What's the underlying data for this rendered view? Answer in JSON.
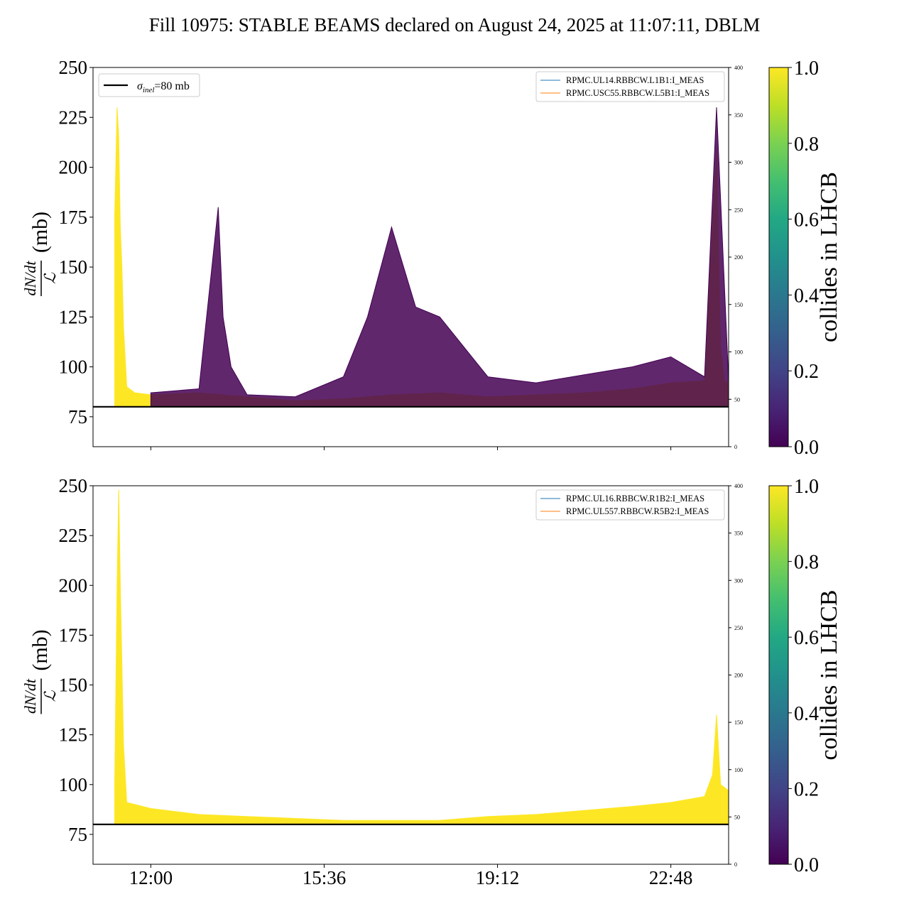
{
  "figure": {
    "title": "Fill 10975: STABLE BEAMS declared on August 24, 2025 at 11:07:11, DBLM"
  },
  "chart_data": [
    {
      "type": "line",
      "panel": "top",
      "ylabel": "dN/dt / ℒ (mb)",
      "ylabel_parts": {
        "numerator": "dN/dt",
        "denominator": "ℒ",
        "unit": "(mb)"
      },
      "ylim": [
        60,
        250
      ],
      "yticks": [
        75,
        100,
        125,
        150,
        175,
        200,
        225,
        250
      ],
      "xlim": [
        "10:48",
        "24:00"
      ],
      "xticks": [
        "12:00",
        "15:36",
        "19:12",
        "22:48"
      ],
      "xtick_labels_shown": false,
      "y2lim": [
        0,
        400
      ],
      "y2ticks": [
        0,
        50,
        100,
        150,
        200,
        250,
        300,
        350,
        400
      ],
      "reference_line": {
        "label": "σinel=80 mb",
        "label_parts": {
          "symbol": "σ",
          "sub": "inel",
          "rest": "=80 mb"
        },
        "y": 80,
        "color": "#000000",
        "legend": "top-left"
      },
      "legend": {
        "placement": "top-right",
        "entries": [
          "RPMC.UL14.RBBCW.L1B1:I_MEAS",
          "RPMC.USC55.RBBCW.L5B1:I_MEAS"
        ],
        "colors": [
          "#1f77b4",
          "#ff7f0e"
        ]
      },
      "colorbar": {
        "label": "collides in LHCB",
        "range": [
          0.0,
          1.0
        ],
        "ticks": [
          "0.0",
          "0.2",
          "0.4",
          "0.6",
          "0.8",
          "1.0"
        ]
      },
      "series": [
        {
          "colliding": 1.0,
          "color": "#fde725",
          "x": [
            "11:15",
            "11:18",
            "11:20",
            "11:22",
            "11:24",
            "11:26",
            "11:30",
            "11:40",
            "12:00",
            "13:00",
            "14:00",
            "15:00",
            "16:00",
            "17:00",
            "18:00",
            "19:00",
            "20:00",
            "21:00",
            "22:00",
            "22:48",
            "23:30",
            "23:45",
            "23:50",
            "23:55",
            "24:00"
          ],
          "y_upper": [
            175,
            230,
            215,
            170,
            150,
            120,
            90,
            87,
            86,
            87,
            85,
            83,
            84,
            86,
            87,
            85,
            86,
            87,
            89,
            92,
            93,
            210,
            110,
            93,
            92
          ]
        },
        {
          "colliding": 0.0,
          "color": "#440154",
          "x": [
            "12:00",
            "13:00",
            "13:24",
            "13:30",
            "13:40",
            "14:00",
            "15:00",
            "16:00",
            "16:30",
            "17:00",
            "17:30",
            "18:00",
            "18:30",
            "19:00",
            "20:00",
            "21:00",
            "22:00",
            "22:48",
            "23:30",
            "23:45",
            "24:00"
          ],
          "y_upper": [
            87,
            89,
            180,
            125,
            100,
            86,
            85,
            95,
            125,
            170,
            130,
            125,
            110,
            95,
            92,
            96,
            100,
            105,
            95,
            230,
            93
          ]
        }
      ]
    },
    {
      "type": "line",
      "panel": "bottom",
      "ylabel": "dN/dt / ℒ (mb)",
      "ylabel_parts": {
        "numerator": "dN/dt",
        "denominator": "ℒ",
        "unit": "(mb)"
      },
      "ylim": [
        60,
        250
      ],
      "yticks": [
        75,
        100,
        125,
        150,
        175,
        200,
        225,
        250
      ],
      "xlim": [
        "10:48",
        "24:00"
      ],
      "xticks": [
        "12:00",
        "15:36",
        "19:12",
        "22:48"
      ],
      "xtick_labels_shown": true,
      "y2lim": [
        0,
        400
      ],
      "y2ticks": [
        0,
        50,
        100,
        150,
        200,
        250,
        300,
        350,
        400
      ],
      "reference_line": {
        "label": "σinel=80 mb",
        "y": 80,
        "color": "#000000",
        "legend": "hidden behind top-right legend"
      },
      "legend": {
        "placement": "top-right",
        "entries": [
          "RPMC.UL16.RBBCW.R1B2:I_MEAS",
          "RPMC.UL557.RBBCW.R5B2:I_MEAS"
        ],
        "colors": [
          "#1f77b4",
          "#ff7f0e"
        ]
      },
      "colorbar": {
        "label": "collides in LHCB",
        "range": [
          0.0,
          1.0
        ],
        "ticks": [
          "0.0",
          "0.2",
          "0.4",
          "0.6",
          "0.8",
          "1.0"
        ]
      },
      "series": [
        {
          "colliding": 1.0,
          "color": "#fde725",
          "x": [
            "11:15",
            "11:18",
            "11:20",
            "11:22",
            "11:24",
            "11:26",
            "11:30",
            "12:00",
            "13:00",
            "14:00",
            "15:00",
            "16:00",
            "17:00",
            "18:00",
            "19:00",
            "20:00",
            "21:00",
            "22:00",
            "22:48",
            "23:30",
            "23:40",
            "23:45",
            "23:50",
            "24:00"
          ],
          "y_upper": [
            100,
            200,
            248,
            200,
            160,
            120,
            91,
            88,
            85,
            84,
            83,
            82,
            82,
            82,
            84,
            85,
            87,
            89,
            91,
            94,
            105,
            135,
            100,
            97
          ]
        }
      ]
    }
  ]
}
